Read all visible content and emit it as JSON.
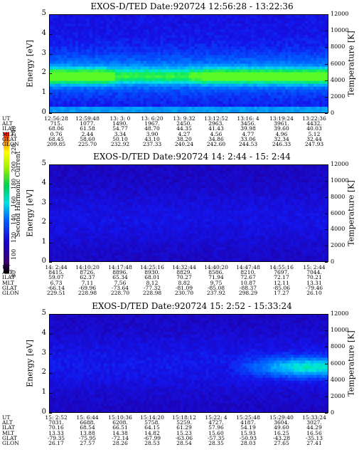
{
  "colorbar": {
    "label": "Second Harmonic Current",
    "ticks": [
      "80",
      "100",
      "120",
      "140",
      "160",
      "180",
      "200",
      "220",
      "240"
    ]
  },
  "chart_data": [
    {
      "type": "heatmap",
      "title": "EXOS-D/TED  Date:920724  12:56:28 - 13:22:36",
      "ylabel": "Energy [eV]",
      "y2label": "Temperature [K]",
      "ylim": [
        0,
        5
      ],
      "y2lim": [
        0,
        12000
      ],
      "yticks": [
        "0",
        "1",
        "2",
        "3",
        "4",
        "5"
      ],
      "y2ticks": [
        "0",
        "2000",
        "4000",
        "6000",
        "8000",
        "10000",
        "12000"
      ],
      "description_band": "strong green emission at 1.5-2 eV at start and end, weaker in middle",
      "orbit": {
        "UT": [
          "12:56:28",
          "12:59:48",
          "13: 3: 0",
          "13: 6:20",
          "13: 9:32",
          "13:12:52",
          "13:16: 4",
          "13:19:24",
          "13:22:36"
        ],
        "ALT": [
          "715.",
          "1077.",
          "1490.",
          "1967.",
          "2450.",
          "2963.",
          "3456.",
          "3961.",
          "4432."
        ],
        "ILAT": [
          "68.06",
          "61.58",
          "54.77",
          "48.70",
          "44.35",
          "41.43",
          "39.98",
          "39.60",
          "40.03"
        ],
        "MLT": [
          "0.76",
          "2.44",
          "3.34",
          "3.90",
          "4.27",
          "4.56",
          "4.77",
          "4.96",
          "5.12"
        ],
        "GLAT": [
          "68.45",
          "58.60",
          "50.10",
          "43.10",
          "38.20",
          "34.86",
          "33.06",
          "32.34",
          "32.44"
        ],
        "GLON": [
          "209.85",
          "225.70",
          "232.92",
          "237.33",
          "240.24",
          "242.60",
          "244.53",
          "246.33",
          "247.93"
        ]
      }
    },
    {
      "type": "heatmap",
      "title": "EXOS-D/TED   Date:920724  14: 2:44 - 15: 2:44",
      "ylabel": "Energy [eV]",
      "y2label": "Temperature [K]",
      "ylim": [
        0,
        5
      ],
      "y2lim": [
        0,
        12000
      ],
      "yticks": [
        "0",
        "1",
        "2",
        "3",
        "4",
        "5"
      ],
      "y2ticks": [
        "0",
        "2000",
        "4000",
        "6000",
        "8000",
        "10000",
        "12000"
      ],
      "orbit": {
        "UT": [
          "14: 2:44",
          "14:10:20",
          "14:17:48",
          "14:25:16",
          "14:32:44",
          "14:40:20",
          "14:47:48",
          "14:55:16",
          "15: 2:44"
        ],
        "ALT": [
          "8415.",
          "8726.",
          "8896.",
          "8930.",
          "8829.",
          "8586.",
          "8210.",
          "7697.",
          "7044."
        ],
        "ILAT": [
          "59.07",
          "62.37",
          "65.34",
          "68.01",
          "70.27",
          "71.94",
          "72.67",
          "72.17",
          "70.21"
        ],
        "MLT": [
          "6.73",
          "7.11",
          "7.56",
          "8.12",
          "8.82",
          "9.75",
          "10.87",
          "12.11",
          "13.31"
        ],
        "GLAT": [
          "-66.14",
          "-69.96",
          "-73.64",
          "-77.32",
          "-81.09",
          "-85.08",
          "-88.37",
          "-85.06",
          "-79.46"
        ],
        "GLON": [
          "229.51",
          "228.98",
          "228.70",
          "228.98",
          "230.70",
          "237.92",
          "298.29",
          "17.27",
          "26.10"
        ]
      }
    },
    {
      "type": "heatmap",
      "title": "EXOS-D/TED   Date:920724  15: 2:52 - 15:33:24",
      "ylabel": "Energy [eV]",
      "y2label": "Temperature [K]",
      "ylim": [
        0,
        5
      ],
      "y2lim": [
        0,
        12000
      ],
      "yticks": [
        "0",
        "1",
        "2",
        "3",
        "4",
        "5"
      ],
      "y2ticks": [
        "0",
        "2000",
        "4000",
        "6000",
        "8000",
        "10000",
        "12000"
      ],
      "orbit": {
        "UT": [
          "15: 2:52",
          "15: 6:44",
          "15:10:36",
          "15:14:20",
          "15:18:12",
          "15:22: 4",
          "15:25:48",
          "15:29:40",
          "15:33:24"
        ],
        "ALT": [
          "7031.",
          "6688.",
          "6208.",
          "5758.",
          "5259.",
          "4727.",
          "4187.",
          "3604.",
          "3027."
        ],
        "ILAT": [
          "70.16",
          "68.54",
          "66.51",
          "64.15",
          "61.29",
          "57.96",
          "54.19",
          "49.60",
          "44.29"
        ],
        "MLT": [
          "13.33",
          "13.88",
          "14.38",
          "14.82",
          "15.23",
          "15.60",
          "15.93",
          "16.25",
          "16.56"
        ],
        "GLAT": [
          "-79.35",
          "-75.95",
          "-72.14",
          "-67.99",
          "-63.06",
          "-57.35",
          "-50.93",
          "-43.28",
          "-35.13"
        ],
        "GLON": [
          "26.17",
          "27.57",
          "28.26",
          "28.53",
          "28.54",
          "28.35",
          "28.03",
          "27.65",
          "27.41"
        ]
      }
    }
  ]
}
